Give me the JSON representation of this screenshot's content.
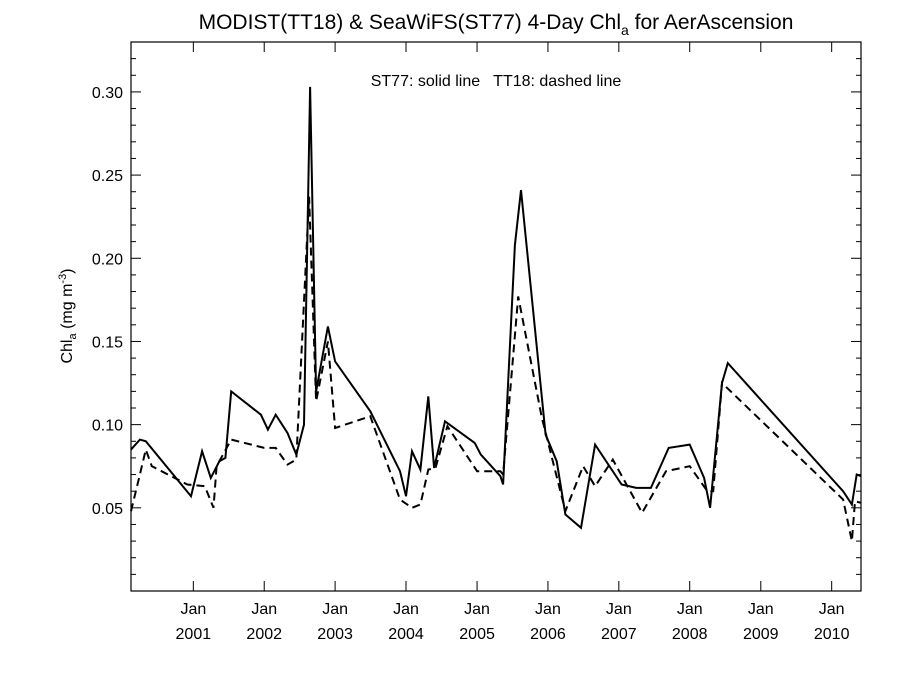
{
  "chart_data": {
    "type": "line",
    "title_main": "MODIST(TT18) & SeaWiFS(ST77) 4-Day Chl",
    "title_sub": "a",
    "title_tail": " for AerAscension",
    "ylabel_main": "Chl",
    "ylabel_sub": "a",
    "ylabel_unit": " (mg m",
    "ylabel_sup": "-3",
    "ylabel_close": ")",
    "annotation": "ST77: solid line   TT18: dashed line",
    "x_domain": [
      "2000-02-15",
      "2010-06-01"
    ],
    "ylim": [
      0.0,
      0.33
    ],
    "yticks": [
      0.05,
      0.1,
      0.15,
      0.2,
      0.25,
      0.3
    ],
    "ytick_labels": [
      "0.05",
      "0.10",
      "0.15",
      "0.20",
      "0.25",
      "0.30"
    ],
    "xtick_dates": [
      "2001-01-01",
      "2002-01-01",
      "2003-01-01",
      "2004-01-01",
      "2005-01-01",
      "2006-01-01",
      "2007-01-01",
      "2008-01-01",
      "2009-01-01",
      "2010-01-01"
    ],
    "xtick_month_label": "Jan",
    "xtick_year_labels": [
      "2001",
      "2002",
      "2003",
      "2004",
      "2005",
      "2006",
      "2007",
      "2008",
      "2009",
      "2010"
    ],
    "grid": false,
    "series": [
      {
        "name": "ST77",
        "style": "solid",
        "color": "#000000",
        "points": [
          [
            "2000-02-15",
            0.085
          ],
          [
            "2000-04-01",
            0.091
          ],
          [
            "2000-05-01",
            0.09
          ],
          [
            "2000-12-20",
            0.057
          ],
          [
            "2001-02-15",
            0.084
          ],
          [
            "2001-04-01",
            0.068
          ],
          [
            "2001-05-15",
            0.078
          ],
          [
            "2001-06-15",
            0.08
          ],
          [
            "2001-07-15",
            0.12
          ],
          [
            "2001-12-15",
            0.106
          ],
          [
            "2002-01-20",
            0.097
          ],
          [
            "2002-03-01",
            0.106
          ],
          [
            "2002-05-01",
            0.095
          ],
          [
            "2002-06-15",
            0.082
          ],
          [
            "2002-07-25",
            0.1
          ],
          [
            "2002-08-25",
            0.303
          ],
          [
            "2002-09-25",
            0.12
          ],
          [
            "2002-11-25",
            0.159
          ],
          [
            "2003-01-01",
            0.138
          ],
          [
            "2003-07-01",
            0.108
          ],
          [
            "2003-12-01",
            0.072
          ],
          [
            "2004-01-01",
            0.057
          ],
          [
            "2004-02-01",
            0.084
          ],
          [
            "2004-03-15",
            0.073
          ],
          [
            "2004-04-25",
            0.117
          ],
          [
            "2004-05-25",
            0.074
          ],
          [
            "2004-07-20",
            0.102
          ],
          [
            "2004-12-20",
            0.089
          ],
          [
            "2005-01-20",
            0.082
          ],
          [
            "2005-05-01",
            0.069
          ],
          [
            "2005-05-15",
            0.064
          ],
          [
            "2005-07-15",
            0.208
          ],
          [
            "2005-08-15",
            0.241
          ],
          [
            "2005-12-20",
            0.094
          ],
          [
            "2006-02-15",
            0.078
          ],
          [
            "2006-04-01",
            0.046
          ],
          [
            "2006-06-20",
            0.038
          ],
          [
            "2006-09-01",
            0.088
          ],
          [
            "2007-01-15",
            0.064
          ],
          [
            "2007-04-01",
            0.062
          ],
          [
            "2007-06-15",
            0.062
          ],
          [
            "2007-09-15",
            0.086
          ],
          [
            "2008-01-01",
            0.088
          ],
          [
            "2008-03-15",
            0.068
          ],
          [
            "2008-04-15",
            0.05
          ],
          [
            "2008-06-15",
            0.125
          ],
          [
            "2008-07-15",
            0.137
          ],
          [
            "2010-03-01",
            0.06
          ],
          [
            "2010-04-15",
            0.052
          ],
          [
            "2010-05-10",
            0.07
          ],
          [
            "2010-06-01",
            0.069
          ]
        ]
      },
      {
        "name": "TT18",
        "style": "dashed",
        "color": "#000000",
        "points": [
          [
            "2000-02-15",
            0.048
          ],
          [
            "2000-04-01",
            0.07
          ],
          [
            "2000-05-01",
            0.085
          ],
          [
            "2000-06-01",
            0.075
          ],
          [
            "2000-12-01",
            0.064
          ],
          [
            "2001-03-01",
            0.063
          ],
          [
            "2001-04-15",
            0.05
          ],
          [
            "2001-05-01",
            0.075
          ],
          [
            "2001-07-15",
            0.091
          ],
          [
            "2002-01-01",
            0.086
          ],
          [
            "2002-03-01",
            0.086
          ],
          [
            "2002-05-01",
            0.076
          ],
          [
            "2002-06-15",
            0.079
          ],
          [
            "2002-08-20",
            0.237
          ],
          [
            "2002-09-25",
            0.114
          ],
          [
            "2002-11-25",
            0.15
          ],
          [
            "2003-01-01",
            0.098
          ],
          [
            "2003-07-01",
            0.105
          ],
          [
            "2003-12-01",
            0.055
          ],
          [
            "2004-02-01",
            0.05
          ],
          [
            "2004-03-15",
            0.052
          ],
          [
            "2004-04-25",
            0.073
          ],
          [
            "2004-06-01",
            0.074
          ],
          [
            "2004-08-01",
            0.099
          ],
          [
            "2005-01-01",
            0.072
          ],
          [
            "2005-05-01",
            0.072
          ],
          [
            "2005-05-15",
            0.07
          ],
          [
            "2005-08-01",
            0.177
          ],
          [
            "2005-12-01",
            0.104
          ],
          [
            "2006-04-01",
            0.048
          ],
          [
            "2006-07-01",
            0.075
          ],
          [
            "2006-09-01",
            0.063
          ],
          [
            "2006-12-01",
            0.079
          ],
          [
            "2007-05-01",
            0.047
          ],
          [
            "2007-09-01",
            0.072
          ],
          [
            "2008-01-01",
            0.075
          ],
          [
            "2008-04-01",
            0.06
          ],
          [
            "2008-05-01",
            0.06
          ],
          [
            "2008-06-15",
            0.125
          ],
          [
            "2010-03-01",
            0.055
          ],
          [
            "2010-04-15",
            0.03
          ],
          [
            "2010-05-01",
            0.054
          ],
          [
            "2010-06-01",
            0.053
          ]
        ]
      }
    ]
  }
}
